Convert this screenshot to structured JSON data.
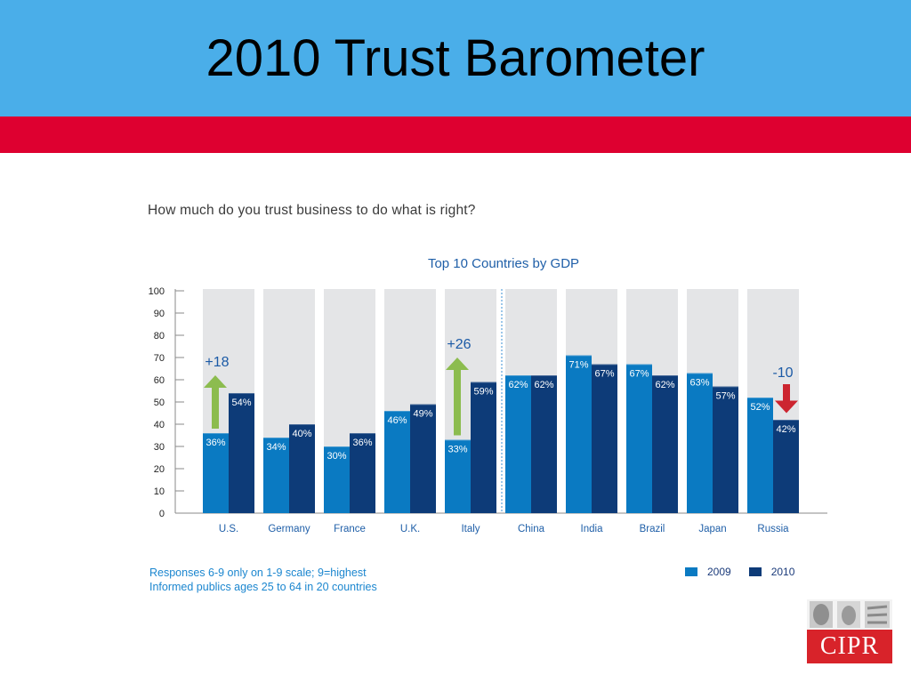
{
  "slide": {
    "title": "2010 Trust Barometer",
    "question": "How much do you trust business to do what is right?",
    "notes": [
      "Responses 6-9 only on 1-9 scale; 9=highest",
      "Informed publics ages 25 to 64 in 20 countries"
    ],
    "logo_text": "CIPR"
  },
  "colors": {
    "header_blue": "#4aaee9",
    "band_red": "#de0030",
    "series_2009": "#0a7ac2",
    "series_2010": "#0d3b78",
    "track_gray": "#e4e5e7",
    "arrow_up": "#8cbc4f",
    "arrow_down": "#cc2530",
    "annotation_text": "#1b5aa6"
  },
  "chart_data": {
    "type": "bar",
    "title": "Top 10 Countries by GDP",
    "categories": [
      "U.S.",
      "Germany",
      "France",
      "U.K.",
      "Italy",
      "China",
      "India",
      "Brazil",
      "Japan",
      "Russia"
    ],
    "series": [
      {
        "name": "2009",
        "values": [
          36,
          34,
          30,
          46,
          33,
          62,
          71,
          67,
          63,
          52
        ],
        "labels": [
          "36%",
          "34%",
          "30%",
          "46%",
          "33%",
          "62%",
          "71%",
          "67%",
          "63%",
          "52%"
        ]
      },
      {
        "name": "2010",
        "values": [
          54,
          40,
          36,
          49,
          59,
          62,
          67,
          62,
          57,
          42
        ],
        "labels": [
          "54%",
          "40%",
          "36%",
          "49%",
          "59%",
          "62%",
          "67%",
          "62%",
          "57%",
          "42%"
        ]
      }
    ],
    "ylim": [
      0,
      100
    ],
    "yticks": [
      0,
      10,
      20,
      30,
      40,
      50,
      60,
      70,
      80,
      90,
      100
    ],
    "grid": false,
    "legend": "bottom-right",
    "divider_after_category": "Italy",
    "annotations": [
      {
        "text": "+18",
        "category": "U.S.",
        "direction": "up",
        "from": 38,
        "to": 62
      },
      {
        "text": "+26",
        "category": "Italy",
        "direction": "up",
        "from": 35,
        "to": 70
      },
      {
        "text": "-10",
        "category": "Russia",
        "direction": "down",
        "from": 58,
        "to": 45
      }
    ]
  }
}
